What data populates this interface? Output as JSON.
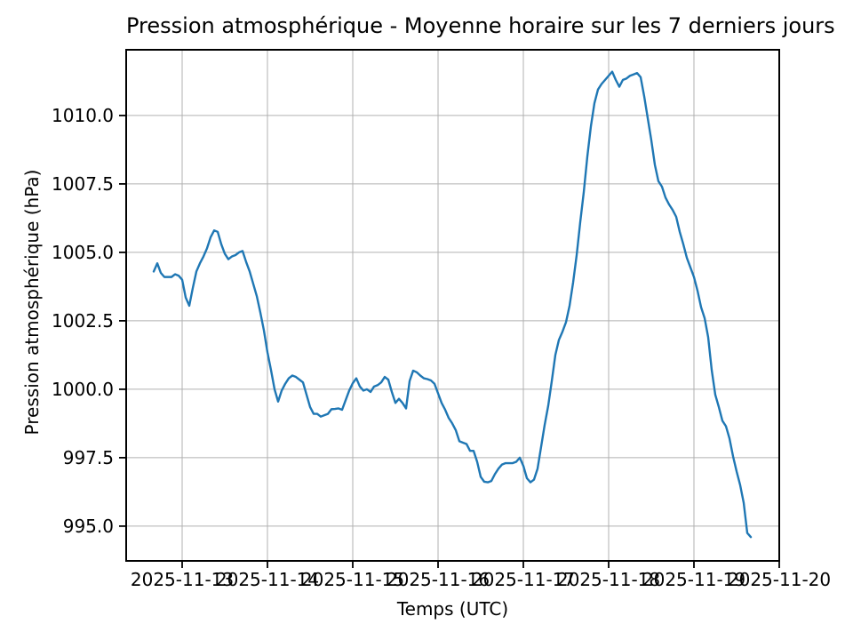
{
  "figure": {
    "background": "#ffffff"
  },
  "chart_data": {
    "type": "line",
    "title": "Pression atmosphérique - Moyenne horaire sur les 7 derniers jours",
    "xlabel": "Temps (UTC)",
    "ylabel": "Pression atmosphérique (hPa)",
    "grid": true,
    "legend_position": "none",
    "line_color": "#1f77b4",
    "grid_color": "#b0b0b0",
    "y_tick_values": [
      995.0,
      997.5,
      1000.0,
      1002.5,
      1005.0,
      1007.5,
      1010.0
    ],
    "y_tick_labels": [
      "995.0",
      "997.5",
      "1000.0",
      "1002.5",
      "1005.0",
      "1007.5",
      "1010.0"
    ],
    "x_tick_labels": [
      "2025-11-13",
      "2025-11-14",
      "2025-11-15",
      "2025-11-16",
      "2025-11-17",
      "2025-11-18",
      "2025-11-19",
      "2025-11-20"
    ],
    "x_ticks_hours": [
      8,
      32,
      56,
      80,
      104,
      128,
      152,
      176
    ],
    "xlim_hours": [
      -7.75,
      176
    ],
    "ylim": [
      993.73,
      1012.4
    ],
    "series": [
      {
        "x_start_hours": 0,
        "step_hours": 1,
        "values": [
          1004.3,
          1004.6,
          1004.25,
          1004.1,
          1004.1,
          1004.1,
          1004.2,
          1004.15,
          1004.0,
          1003.35,
          1003.05,
          1003.7,
          1004.3,
          1004.6,
          1004.85,
          1005.15,
          1005.55,
          1005.8,
          1005.75,
          1005.3,
          1004.95,
          1004.75,
          1004.85,
          1004.9,
          1005.0,
          1005.05,
          1004.65,
          1004.3,
          1003.85,
          1003.4,
          1002.8,
          1002.15,
          1001.35,
          1000.7,
          1000.0,
          999.55,
          999.95,
          1000.2,
          1000.4,
          1000.5,
          1000.45,
          1000.35,
          1000.25,
          999.8,
          999.35,
          999.1,
          999.1,
          999.0,
          999.05,
          999.1,
          999.27,
          999.28,
          999.3,
          999.25,
          999.6,
          999.95,
          1000.22,
          1000.4,
          1000.1,
          999.95,
          1000.0,
          999.9,
          1000.1,
          1000.15,
          1000.25,
          1000.45,
          1000.35,
          999.9,
          999.5,
          999.65,
          999.5,
          999.3,
          1000.3,
          1000.68,
          1000.62,
          1000.5,
          1000.4,
          1000.37,
          1000.32,
          1000.2,
          999.85,
          999.5,
          999.25,
          998.95,
          998.75,
          998.5,
          998.1,
          998.05,
          998.0,
          997.75,
          997.75,
          997.35,
          996.8,
          996.62,
          996.6,
          996.65,
          996.9,
          997.1,
          997.25,
          997.3,
          997.3,
          997.3,
          997.35,
          997.5,
          997.2,
          996.75,
          996.6,
          996.7,
          997.1,
          997.9,
          998.7,
          999.4,
          1000.3,
          1001.25,
          1001.8,
          1002.1,
          1002.45,
          1003.05,
          1003.9,
          1004.9,
          1006.1,
          1007.2,
          1008.5,
          1009.6,
          1010.45,
          1010.95,
          1011.15,
          1011.3,
          1011.45,
          1011.6,
          1011.3,
          1011.05,
          1011.3,
          1011.35,
          1011.45,
          1011.5,
          1011.55,
          1011.4,
          1010.7,
          1009.9,
          1009.1,
          1008.2,
          1007.6,
          1007.4,
          1007.0,
          1006.75,
          1006.55,
          1006.3,
          1005.75,
          1005.3,
          1004.8,
          1004.45,
          1004.1,
          1003.6,
          1003.0,
          1002.6,
          1001.9,
          1000.7,
          999.8,
          999.35,
          998.85,
          998.65,
          998.2,
          997.55,
          997.0,
          996.5,
          995.85,
          994.75,
          994.6
        ]
      }
    ]
  }
}
